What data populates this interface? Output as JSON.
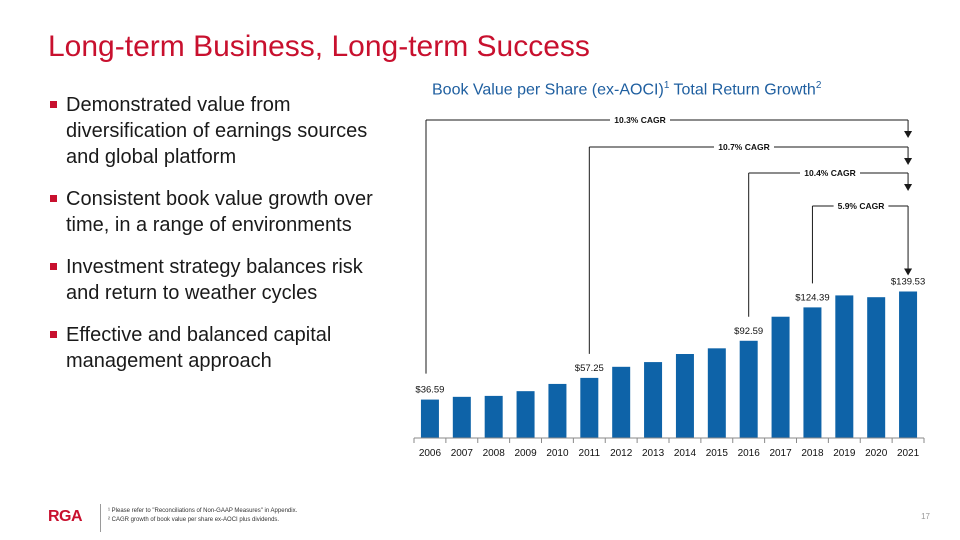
{
  "slide": {
    "title": "Long-term Business, Long-term Success",
    "bullets": [
      "Demonstrated value from diversification of earnings sources and global platform",
      "Consistent book value growth over time, in a range of environments",
      "Investment strategy balances risk and return to weather cycles",
      "Effective and balanced capital management approach"
    ],
    "chart_heading": {
      "part1": "Book Value per Share (ex-AOCI)",
      "sup1": "1",
      "part2": " Total Return Growth",
      "sup2": "2"
    },
    "footnotes": [
      "¹ Please refer to \"Reconciliations of Non-GAAP Measures\" in Appendix.",
      "² CAGR growth of book value per share ex-AOCI plus dividends."
    ],
    "logo": "RGA",
    "page_number": "17"
  },
  "chart_data": {
    "type": "bar",
    "categories": [
      "2006",
      "2007",
      "2008",
      "2009",
      "2010",
      "2011",
      "2012",
      "2013",
      "2014",
      "2015",
      "2016",
      "2017",
      "2018",
      "2019",
      "2020",
      "2021"
    ],
    "values": [
      36.59,
      39.2,
      40.1,
      44.6,
      51.5,
      57.25,
      67.8,
      72.3,
      80.0,
      85.4,
      92.59,
      115.5,
      124.39,
      135.8,
      134.1,
      139.53
    ],
    "data_labels": [
      {
        "category": "2006",
        "text": "$36.59"
      },
      {
        "category": "2011",
        "text": "$57.25"
      },
      {
        "category": "2016",
        "text": "$92.59"
      },
      {
        "category": "2018",
        "text": "$124.39"
      },
      {
        "category": "2021",
        "text": "$139.53"
      }
    ],
    "annotations": [
      {
        "text": "10.3% CAGR",
        "from": "2006",
        "to": "2021"
      },
      {
        "text": "10.7% CAGR",
        "from": "2011",
        "to": "2021"
      },
      {
        "text": "10.4% CAGR",
        "from": "2016",
        "to": "2021"
      },
      {
        "text": "5.9% CAGR",
        "from": "2018",
        "to": "2021"
      }
    ],
    "bar_color": "#0e63a8",
    "ylim": [
      0,
      160
    ],
    "grid": false
  }
}
